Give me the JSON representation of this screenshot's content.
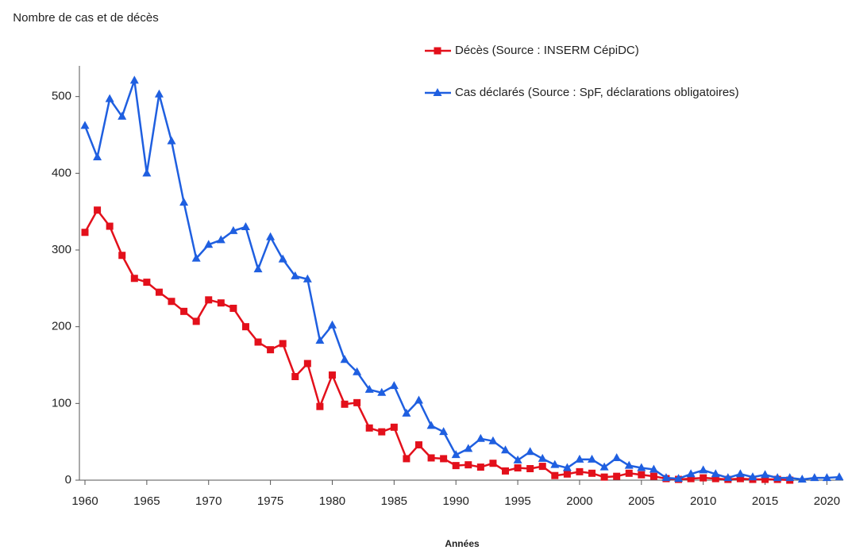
{
  "chart_data": {
    "type": "line",
    "ylabel": "Nombre de cas et de décès",
    "xlabel": "Années",
    "x": [
      1960,
      1961,
      1962,
      1963,
      1964,
      1965,
      1966,
      1967,
      1968,
      1969,
      1970,
      1971,
      1972,
      1973,
      1974,
      1975,
      1976,
      1977,
      1978,
      1979,
      1980,
      1981,
      1982,
      1983,
      1984,
      1985,
      1986,
      1987,
      1988,
      1989,
      1990,
      1991,
      1992,
      1993,
      1994,
      1995,
      1996,
      1997,
      1998,
      1999,
      2000,
      2001,
      2002,
      2003,
      2004,
      2005,
      2006,
      2007,
      2008,
      2009,
      2010,
      2011,
      2012,
      2013,
      2014,
      2015,
      2016,
      2017,
      2018,
      2019,
      2020,
      2021
    ],
    "series": [
      {
        "name": "Décès (Source : INSERM CépiDC)",
        "color": "#e3101b",
        "marker": "square",
        "values": [
          323,
          352,
          331,
          293,
          263,
          258,
          245,
          233,
          220,
          207,
          235,
          231,
          224,
          200,
          180,
          170,
          178,
          135,
          152,
          96,
          137,
          99,
          101,
          68,
          63,
          69,
          28,
          46,
          29,
          28,
          19,
          20,
          17,
          22,
          12,
          16,
          15,
          18,
          6,
          8,
          11,
          9,
          4,
          5,
          9,
          7,
          5,
          2,
          1,
          2,
          3,
          2,
          1,
          2,
          1,
          1,
          1,
          0,
          null,
          null,
          null,
          null
        ]
      },
      {
        "name": "Cas déclarés (Source : SpF, déclarations obligatoires)",
        "color": "#1f5fe0",
        "marker": "triangle",
        "values": [
          462,
          421,
          497,
          474,
          521,
          400,
          503,
          442,
          362,
          289,
          307,
          313,
          325,
          330,
          275,
          317,
          288,
          266,
          262,
          182,
          202,
          157,
          141,
          118,
          114,
          123,
          87,
          104,
          71,
          63,
          33,
          41,
          54,
          51,
          39,
          26,
          37,
          28,
          20,
          16,
          27,
          27,
          17,
          29,
          19,
          16,
          14,
          3,
          2,
          8,
          13,
          8,
          3,
          8,
          4,
          7,
          3,
          3,
          1,
          3,
          3,
          4
        ]
      }
    ],
    "xlim": [
      1960,
      2021
    ],
    "xticks": [
      1960,
      1965,
      1970,
      1975,
      1980,
      1985,
      1990,
      1995,
      2000,
      2005,
      2010,
      2015,
      2020
    ],
    "ylim": [
      0,
      540
    ],
    "yticks": [
      0,
      100,
      200,
      300,
      400,
      500
    ],
    "grid": false
  }
}
